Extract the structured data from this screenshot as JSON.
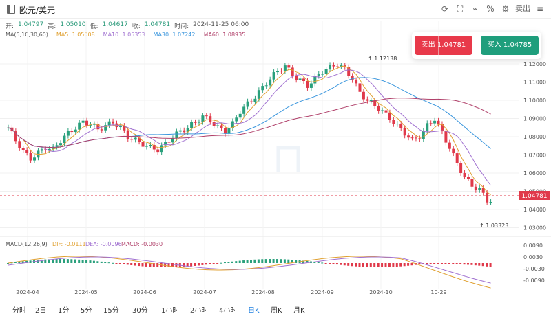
{
  "window": {
    "title": "欧元/美元"
  },
  "toolbar": {
    "refresh_icon": "refresh-icon",
    "fullscreen_icon": "fullscreen-icon",
    "indicator_icon": "indicator-icon",
    "percent_icon": "percent-icon",
    "settings_icon": "settings-icon",
    "sell_label": "卖出"
  },
  "ohlc": {
    "open_label": "开:",
    "open": "1.04797",
    "high_label": "高:",
    "high": "1.05010",
    "low_label": "低:",
    "low": "1.04617",
    "close_label": "收:",
    "close": "1.04781",
    "time_label": "时间:",
    "time": "2024-11-25 06:00"
  },
  "ma": {
    "label": "MA(5,10,30,60)",
    "items": [
      {
        "name": "MA5: 1.05008",
        "color": "#e0a030"
      },
      {
        "name": "MA10: 1.05353",
        "color": "#a070d0"
      },
      {
        "name": "MA30: 1.07242",
        "color": "#3a96dd"
      },
      {
        "name": "MA60: 1.08935",
        "color": "#b0406a"
      }
    ]
  },
  "trade": {
    "sell": "卖出 1.04781",
    "buy": "买入 1.04785"
  },
  "price_axis": {
    "ticks": [
      "1.12000",
      "1.11000",
      "1.10000",
      "1.09000",
      "1.08000",
      "1.07000",
      "1.06000",
      "1.05000",
      "1.04000",
      "1.03000"
    ],
    "current": "1.04781",
    "high_mark": "1.12138",
    "low_mark": "1.03323"
  },
  "macd": {
    "label": "MACD(12,26,9)",
    "dif": "DIF: -0.0111",
    "dea": "DEA: -0.0096",
    "macd": "MACD: -0.0030",
    "ticks": [
      "0.0090",
      "0.0030",
      "-0.0030",
      "-0.0090"
    ]
  },
  "x_axis": [
    "2024-04",
    "2024-05",
    "2024-06",
    "2024-07",
    "2024-08",
    "2024-09",
    "2024-10",
    "10-29"
  ],
  "timeframes": [
    "分时",
    "2日",
    "1分",
    "5分",
    "15分",
    "30分",
    "1小时",
    "2小时",
    "4小时",
    "日K",
    "周K",
    "月K"
  ],
  "active_timeframe": "日K",
  "colors": {
    "up": "#2aa07c",
    "down": "#e0394a",
    "accent": "#1e7fe0"
  }
}
